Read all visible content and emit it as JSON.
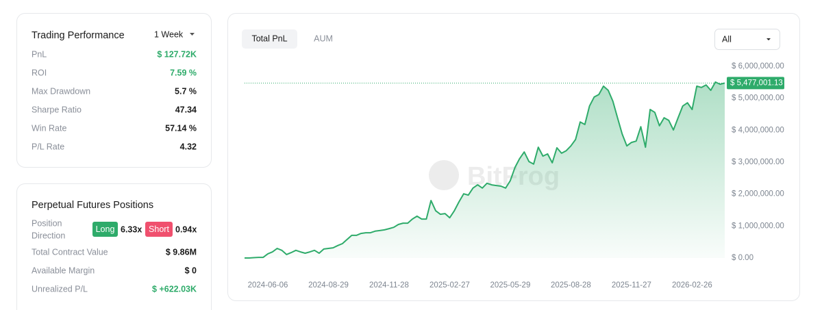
{
  "trading_performance": {
    "title": "Trading Performance",
    "period": "1 Week",
    "rows": [
      {
        "label": "PnL",
        "value": "$ 127.72K",
        "positive": true
      },
      {
        "label": "ROI",
        "value": "7.59 %",
        "positive": true
      },
      {
        "label": "Max Drawdown",
        "value": "5.7 %"
      },
      {
        "label": "Sharpe Ratio",
        "value": "47.34"
      },
      {
        "label": "Win Rate",
        "value": "57.14 %"
      },
      {
        "label": "P/L Rate",
        "value": "4.32"
      }
    ]
  },
  "perpetual_positions": {
    "title": "Perpetual Futures Positions",
    "direction": {
      "label_line1": "Position",
      "label_line2": "Direction",
      "long": "Long",
      "long_value": "6.33x",
      "short": "Short",
      "short_value": "0.94x"
    },
    "rows": [
      {
        "label": "Total Contract Value",
        "value": "$ 9.86M"
      },
      {
        "label": "Available Margin",
        "value": "$ 0"
      },
      {
        "label": "Unrealized P/L",
        "value": "$ +622.03K",
        "positive": true
      }
    ]
  },
  "tabs": [
    "Total PnL",
    "AUM"
  ],
  "range_select": "All",
  "watermark": "BitFrog",
  "chart_data": {
    "type": "area",
    "color": "#2eab6a",
    "categories": [
      null,
      null,
      null,
      null,
      null,
      "2024-06-06",
      null,
      null,
      null,
      null,
      null,
      null,
      null,
      null,
      null,
      null,
      null,
      null,
      "2024-08-29",
      null,
      null,
      null,
      null,
      null,
      null,
      null,
      null,
      null,
      null,
      null,
      null,
      "2024-11-28",
      null,
      null,
      null,
      null,
      null,
      null,
      null,
      null,
      null,
      null,
      null,
      null,
      "2025-02-27",
      null,
      null,
      null,
      null,
      null,
      null,
      null,
      null,
      null,
      null,
      null,
      null,
      "2025-05-29",
      null,
      null,
      null,
      null,
      null,
      null,
      null,
      null,
      null,
      null,
      null,
      null,
      "2025-08-28",
      null,
      null,
      null,
      null,
      null,
      null,
      null,
      null,
      null,
      null,
      null,
      null,
      "2025-11-27",
      null,
      null,
      null,
      null,
      null,
      null,
      null,
      null,
      null,
      null,
      null,
      null,
      "2026-02-26",
      null,
      null,
      null,
      null,
      null,
      null,
      null
    ],
    "values": [
      0,
      0,
      10000,
      20000,
      20000,
      130000,
      190000,
      300000,
      240000,
      110000,
      170000,
      240000,
      190000,
      150000,
      190000,
      240000,
      150000,
      280000,
      300000,
      320000,
      390000,
      450000,
      580000,
      710000,
      710000,
      770000,
      790000,
      790000,
      840000,
      860000,
      880000,
      920000,
      960000,
      1050000,
      1090000,
      1090000,
      1220000,
      1310000,
      1220000,
      1220000,
      1800000,
      1480000,
      1370000,
      1390000,
      1260000,
      1480000,
      1760000,
      2010000,
      1970000,
      2190000,
      2290000,
      2190000,
      2340000,
      2290000,
      2270000,
      2250000,
      2190000,
      2420000,
      2830000,
      3110000,
      3320000,
      3020000,
      2940000,
      3470000,
      3190000,
      3260000,
      2980000,
      3450000,
      3280000,
      3360000,
      3510000,
      3710000,
      4260000,
      4180000,
      4760000,
      5040000,
      5120000,
      5380000,
      5250000,
      4910000,
      4390000,
      3880000,
      3510000,
      3620000,
      3660000,
      4110000,
      3470000,
      4650000,
      4560000,
      4140000,
      4390000,
      4310000,
      4010000,
      4390000,
      4760000,
      4860000,
      4650000,
      5380000,
      5340000,
      5420000,
      5250000,
      5510000,
      5440000,
      5477001.13
    ],
    "current_label": "$ 5,477,001.13",
    "ylim": [
      0,
      6000000
    ],
    "yticks": [
      {
        "value": 0,
        "label": "$ 0.00"
      },
      {
        "value": 1000000,
        "label": "$ 1,000,000.00"
      },
      {
        "value": 2000000,
        "label": "$ 2,000,000.00"
      },
      {
        "value": 3000000,
        "label": "$ 3,000,000.00"
      },
      {
        "value": 4000000,
        "label": "$ 4,000,000.00"
      },
      {
        "value": 5000000,
        "label": "$ 5,000,000.00"
      },
      {
        "value": 6000000,
        "label": "$ 6,000,000.00"
      }
    ],
    "grid": false
  }
}
